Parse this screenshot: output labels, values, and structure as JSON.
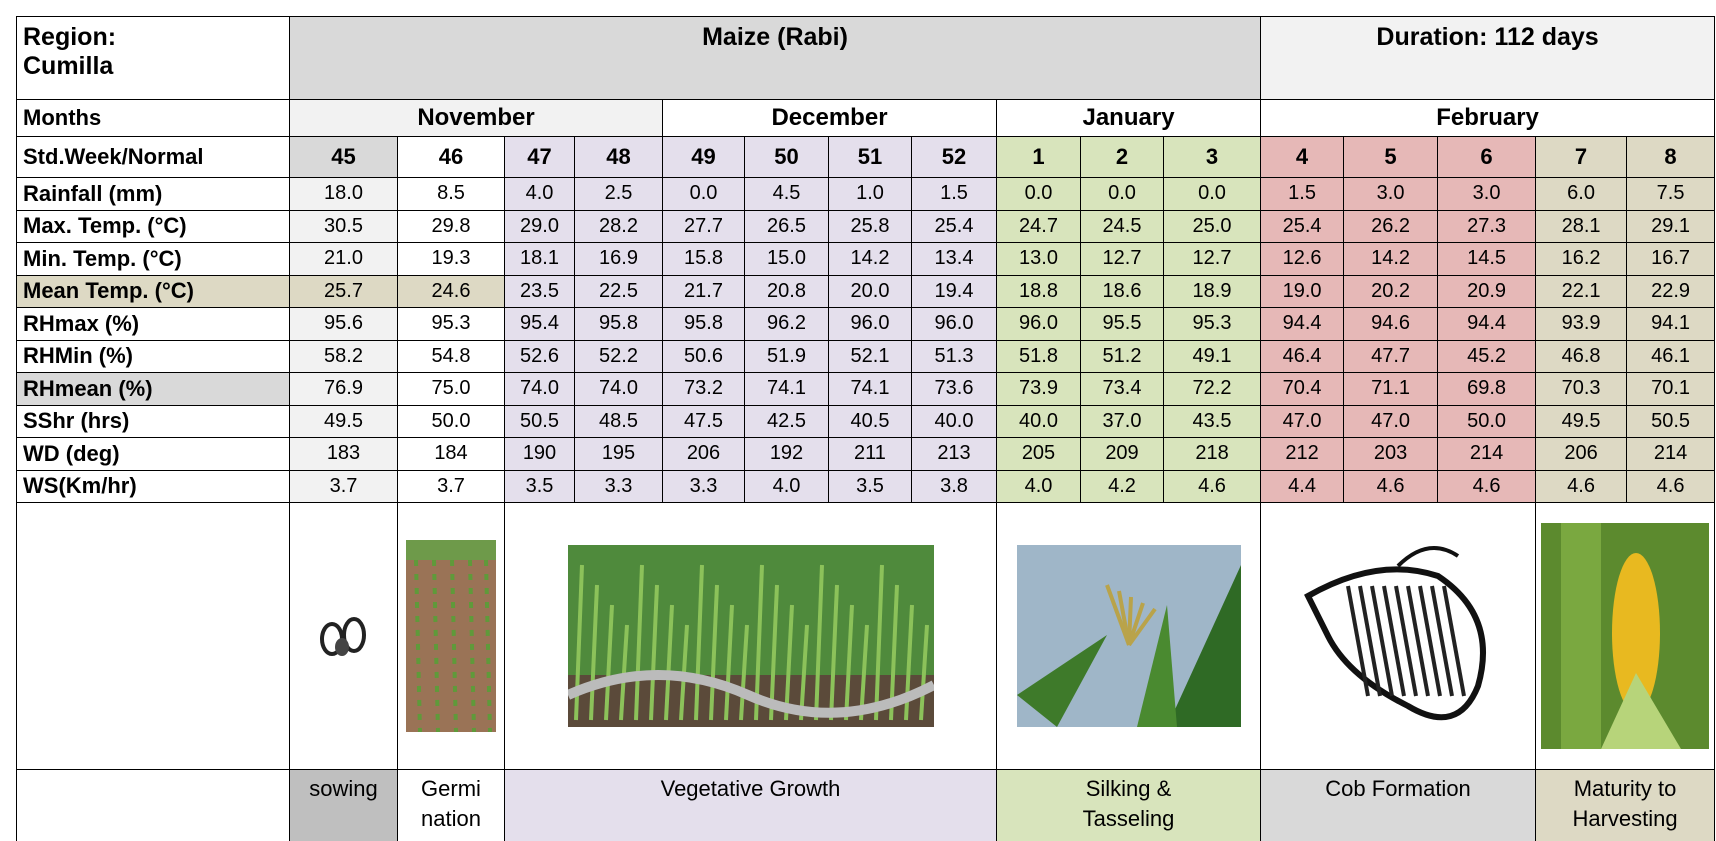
{
  "header": {
    "region": [
      "Region:",
      "Cumilla"
    ],
    "crop": "Maize (Rabi)",
    "duration": "Duration: 112 days"
  },
  "months": {
    "label": "Months",
    "names": [
      "November",
      "December",
      "January",
      "February"
    ]
  },
  "weeks": {
    "label": "Std.Week/Normal",
    "values": [
      45,
      46,
      47,
      48,
      49,
      50,
      51,
      52,
      1,
      2,
      3,
      4,
      5,
      6,
      7,
      8
    ]
  },
  "rows": [
    {
      "label": "Rainfall (mm)",
      "values": [
        "18.0",
        "8.5",
        "4.0",
        "2.5",
        "0.0",
        "4.5",
        "1.0",
        "1.5",
        "0.0",
        "0.0",
        "0.0",
        "1.5",
        "3.0",
        "3.0",
        "6.0",
        "7.5"
      ]
    },
    {
      "label": "Max. Temp. (°C)",
      "values": [
        "30.5",
        "29.8",
        "29.0",
        "28.2",
        "27.7",
        "26.5",
        "25.8",
        "25.4",
        "24.7",
        "24.5",
        "25.0",
        "25.4",
        "26.2",
        "27.3",
        "28.1",
        "29.1"
      ]
    },
    {
      "label": "Min. Temp. (°C)",
      "values": [
        "21.0",
        "19.3",
        "18.1",
        "16.9",
        "15.8",
        "15.0",
        "14.2",
        "13.4",
        "13.0",
        "12.7",
        "12.7",
        "12.6",
        "14.2",
        "14.5",
        "16.2",
        "16.7"
      ]
    },
    {
      "label": "Mean Temp. (°C)",
      "values": [
        "25.7",
        "24.6",
        "23.5",
        "22.5",
        "21.7",
        "20.8",
        "20.0",
        "19.4",
        "18.8",
        "18.6",
        "18.9",
        "19.0",
        "20.2",
        "20.9",
        "22.1",
        "22.9"
      ]
    },
    {
      "label": "RHmax (%)",
      "values": [
        "95.6",
        "95.3",
        "95.4",
        "95.8",
        "95.8",
        "96.2",
        "96.0",
        "96.0",
        "96.0",
        "95.5",
        "95.3",
        "94.4",
        "94.6",
        "94.4",
        "93.9",
        "94.1"
      ]
    },
    {
      "label": "RHMin (%)",
      "values": [
        "58.2",
        "54.8",
        "52.6",
        "52.2",
        "50.6",
        "51.9",
        "52.1",
        "51.3",
        "51.8",
        "51.2",
        "49.1",
        "46.4",
        "47.7",
        "45.2",
        "46.8",
        "46.1"
      ]
    },
    {
      "label": "RHmean (%)",
      "values": [
        "76.9",
        "75.0",
        "74.0",
        "74.0",
        "73.2",
        "74.1",
        "74.1",
        "73.6",
        "73.9",
        "73.4",
        "72.2",
        "70.4",
        "71.1",
        "69.8",
        "70.3",
        "70.1"
      ]
    },
    {
      "label": "SShr (hrs)",
      "values": [
        "49.5",
        "50.0",
        "50.5",
        "48.5",
        "47.5",
        "42.5",
        "40.5",
        "40.0",
        "40.0",
        "37.0",
        "43.5",
        "47.0",
        "47.0",
        "50.0",
        "49.5",
        "50.5"
      ]
    },
    {
      "label": "WD (deg)",
      "values": [
        "183",
        "184",
        "190",
        "195",
        "206",
        "192",
        "211",
        "213",
        "205",
        "209",
        "218",
        "212",
        "203",
        "214",
        "206",
        "214"
      ]
    },
    {
      "label": "WS(Km/hr)",
      "values": [
        "3.7",
        "3.7",
        "3.5",
        "3.3",
        "3.3",
        "4.0",
        "3.5",
        "3.8",
        "4.0",
        "4.2",
        "4.6",
        "4.4",
        "4.6",
        "4.6",
        "4.6",
        "4.6"
      ]
    }
  ],
  "stages": [
    {
      "lines": [
        "sowing"
      ]
    },
    {
      "lines": [
        "Germi",
        "nation"
      ]
    },
    {
      "lines": [
        "Vegetative Growth"
      ]
    },
    {
      "lines": [
        "Silking &",
        "Tasseling"
      ]
    },
    {
      "lines": [
        "Cob Formation"
      ]
    },
    {
      "lines": [
        "Maturity to",
        "Harvesting"
      ]
    }
  ]
}
